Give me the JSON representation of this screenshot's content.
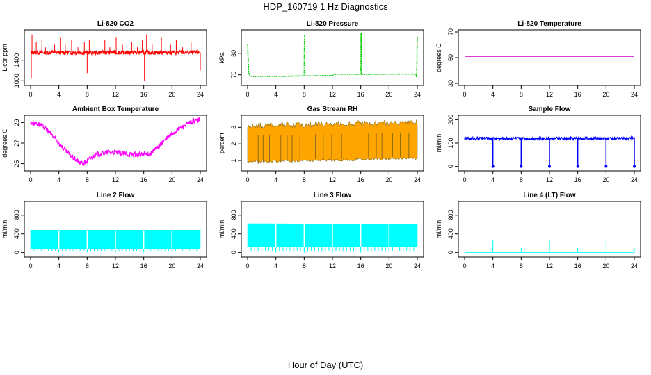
{
  "figure": {
    "title": "HDP_160719  1 Hz Diagnostics",
    "xlabel": "Hour of Day (UTC)"
  },
  "colors": {
    "co2": "#ff0000",
    "pressure": "#00cc00",
    "li820_temp": "#cc00cc",
    "box_temp": "#ff00ff",
    "rh_fill": "#ffa500",
    "rh_line": "#8b6914",
    "sample_flow": "#0000ff",
    "line_flow": "#00ffff"
  },
  "chart_data": [
    {
      "id": "co2",
      "type": "line",
      "title": "Li-820 CO2",
      "ylabel": "Licor ppm",
      "xlim": [
        0,
        24
      ],
      "ylim": [
        950,
        1950
      ],
      "xticks": [
        0,
        4,
        8,
        12,
        16,
        20,
        24
      ],
      "yticks": [
        1000,
        1400
      ],
      "series": [
        {
          "color_key": "co2",
          "band": {
            "x": [
              0,
              24
            ],
            "center": [
              1550,
              1550
            ],
            "half_width": 40
          },
          "spikes": [
            [
              0.1,
              1050
            ],
            [
              0.2,
              1900
            ],
            [
              0.8,
              1750
            ],
            [
              1.6,
              1800
            ],
            [
              2.1,
              1650
            ],
            [
              3.4,
              1700
            ],
            [
              4.2,
              1850
            ],
            [
              4.9,
              1700
            ],
            [
              5.8,
              1800
            ],
            [
              6.7,
              1650
            ],
            [
              7.6,
              1750
            ],
            [
              8.0,
              1150
            ],
            [
              8.3,
              1800
            ],
            [
              9.1,
              1700
            ],
            [
              10.5,
              1800
            ],
            [
              11.2,
              1650
            ],
            [
              12.1,
              1850
            ],
            [
              13.0,
              1700
            ],
            [
              14.3,
              1750
            ],
            [
              15.1,
              1650
            ],
            [
              15.8,
              1800
            ],
            [
              16.1,
              1000
            ],
            [
              16.4,
              1900
            ],
            [
              17.2,
              1700
            ],
            [
              18.5,
              1850
            ],
            [
              19.8,
              1700
            ],
            [
              20.6,
              1800
            ],
            [
              21.5,
              1650
            ],
            [
              22.7,
              1750
            ],
            [
              24.0,
              1200
            ]
          ]
        }
      ]
    },
    {
      "id": "pressure",
      "type": "line",
      "title": "Li-820 Pressure",
      "ylabel": "kPa",
      "xlim": [
        0,
        24
      ],
      "ylim": [
        66,
        90
      ],
      "xticks": [
        0,
        4,
        8,
        12,
        16,
        20,
        24
      ],
      "yticks": [
        70,
        80
      ],
      "series": [
        {
          "color_key": "pressure",
          "dotted": true,
          "points": [
            [
              0,
              84
            ],
            [
              0.15,
              71
            ],
            [
              0.4,
              69.2
            ],
            [
              4,
              69.2
            ],
            [
              8,
              69.5
            ],
            [
              8.05,
              88.5
            ],
            [
              8.1,
              69.5
            ],
            [
              12,
              69.6
            ],
            [
              12.1,
              70.2
            ],
            [
              16,
              70.2
            ],
            [
              16.05,
              89.5
            ],
            [
              16.1,
              70.2
            ],
            [
              20,
              70.3
            ],
            [
              23.8,
              70.3
            ],
            [
              23.9,
              69
            ],
            [
              24,
              88
            ]
          ]
        }
      ]
    },
    {
      "id": "li820-temp",
      "type": "line",
      "title": "Li-820 Temperature",
      "ylabel": "degrees C",
      "xlim": [
        0,
        24
      ],
      "ylim": [
        30,
        70
      ],
      "xticks": [
        0,
        4,
        8,
        12,
        16,
        20,
        24
      ],
      "yticks": [
        30,
        50,
        70
      ],
      "series": [
        {
          "color_key": "li820_temp",
          "points": [
            [
              0,
              51
            ],
            [
              24,
              51
            ]
          ]
        }
      ]
    },
    {
      "id": "box-temp",
      "type": "line",
      "title": "Ambient Box Temperature",
      "ylabel": "degrees C",
      "xlim": [
        0,
        24
      ],
      "ylim": [
        24.5,
        29.5
      ],
      "xticks": [
        0,
        4,
        8,
        12,
        16,
        20,
        24
      ],
      "yticks": [
        25,
        27,
        29
      ],
      "series": [
        {
          "color_key": "box_temp",
          "band": {
            "half_width": 0.25,
            "x": [
              0,
              1,
              2,
              3,
              4,
              5,
              6,
              7,
              7.5,
              8,
              9,
              10,
              11,
              12,
              13,
              14,
              15,
              16,
              17,
              18,
              19,
              20,
              21,
              22,
              23,
              24
            ],
            "center": [
              29,
              28.9,
              28.5,
              27.8,
              27,
              26.2,
              25.6,
              25.1,
              25.0,
              25.3,
              25.8,
              26.0,
              26.1,
              26.1,
              26.0,
              25.9,
              25.9,
              25.9,
              26.0,
              26.6,
              27.3,
              27.9,
              28.4,
              28.8,
              29.1,
              29.3
            ]
          }
        }
      ]
    },
    {
      "id": "gas-rh",
      "type": "area",
      "title": "Gas Stream RH",
      "ylabel": "percent",
      "xlim": [
        0,
        24
      ],
      "ylim": [
        0.5,
        3.6
      ],
      "xticks": [
        0,
        4,
        8,
        12,
        16,
        20,
        24
      ],
      "yticks": [
        1.0,
        2.0,
        3.0
      ],
      "series": [
        {
          "color_key": "rh_fill",
          "band": {
            "x": [
              0,
              24
            ],
            "low": [
              1.0,
              1.2
            ],
            "high": [
              3.1,
              3.3
            ]
          },
          "dips": [
            [
              1.5,
              0.8
            ],
            [
              2.2,
              0.9
            ],
            [
              3.1,
              0.9
            ],
            [
              4.7,
              0.9
            ],
            [
              5.6,
              1.0
            ],
            [
              6.3,
              0.9
            ],
            [
              7.4,
              1.0
            ],
            [
              8.8,
              1.0
            ],
            [
              9.6,
              1.1
            ],
            [
              10.7,
              1.0
            ],
            [
              11.9,
              1.1
            ],
            [
              13.3,
              1.1
            ],
            [
              14.6,
              1.2
            ],
            [
              15.5,
              1.1
            ],
            [
              17.1,
              1.2
            ],
            [
              18.2,
              1.2
            ],
            [
              19.0,
              1.1
            ],
            [
              20.5,
              1.2
            ],
            [
              21.6,
              1.2
            ],
            [
              22.8,
              1.1
            ]
          ]
        }
      ]
    },
    {
      "id": "sample-flow",
      "type": "line",
      "title": "Sample Flow",
      "ylabel": "ml/min",
      "xlim": [
        0,
        24
      ],
      "ylim": [
        -10,
        210
      ],
      "xticks": [
        0,
        4,
        8,
        12,
        16,
        20,
        24
      ],
      "yticks": [
        0,
        100,
        200
      ],
      "series": [
        {
          "color_key": "sample_flow",
          "band": {
            "x": [
              0,
              24
            ],
            "center": [
              120,
              120
            ],
            "half_width": 6
          },
          "spikes": [
            [
              4.0,
              0
            ],
            [
              8.0,
              0
            ],
            [
              12.0,
              0
            ],
            [
              16.0,
              0
            ],
            [
              20.0,
              0
            ],
            [
              24.0,
              0
            ]
          ]
        }
      ]
    },
    {
      "id": "line2-flow",
      "type": "area",
      "title": "Line 2 Flow",
      "ylabel": "ml/min",
      "xlim": [
        0,
        24
      ],
      "ylim": [
        -50,
        1050
      ],
      "xticks": [
        0,
        4,
        8,
        12,
        16,
        20,
        24
      ],
      "yticks": [
        0,
        400,
        800
      ],
      "series": [
        {
          "color_key": "line_flow",
          "band": {
            "x": [
              0,
              24
            ],
            "low": [
              80,
              80
            ],
            "high": [
              480,
              480
            ]
          },
          "gaps": [
            4,
            8,
            12,
            16,
            20
          ]
        }
      ]
    },
    {
      "id": "line3-flow",
      "type": "area",
      "title": "Line 3 Flow",
      "ylabel": "ml/min",
      "xlim": [
        0,
        24
      ],
      "ylim": [
        -50,
        1050
      ],
      "xticks": [
        0,
        4,
        8,
        12,
        16,
        20,
        24
      ],
      "yticks": [
        0,
        400,
        800
      ],
      "series": [
        {
          "color_key": "line_flow",
          "band": {
            "x": [
              0,
              24
            ],
            "low": [
              120,
              120
            ],
            "high": [
              620,
              600
            ]
          },
          "gaps": [
            4,
            8,
            12,
            16,
            20
          ]
        }
      ]
    },
    {
      "id": "line4-flow",
      "type": "line",
      "title": "Line 4 (LT) Flow",
      "ylabel": "ml/min",
      "xlim": [
        0,
        24
      ],
      "ylim": [
        -50,
        1050
      ],
      "xticks": [
        0,
        4,
        8,
        12,
        16,
        20,
        24
      ],
      "yticks": [
        0,
        400,
        800
      ],
      "series": [
        {
          "color_key": "line_flow",
          "band": {
            "x": [
              0,
              24
            ],
            "center": [
              0,
              0
            ],
            "half_width": 0
          },
          "spikes": [
            [
              4.0,
              280
            ],
            [
              8.0,
              100
            ],
            [
              12.0,
              280
            ],
            [
              16.0,
              100
            ],
            [
              20.0,
              280
            ],
            [
              24.0,
              100
            ]
          ]
        }
      ]
    }
  ]
}
